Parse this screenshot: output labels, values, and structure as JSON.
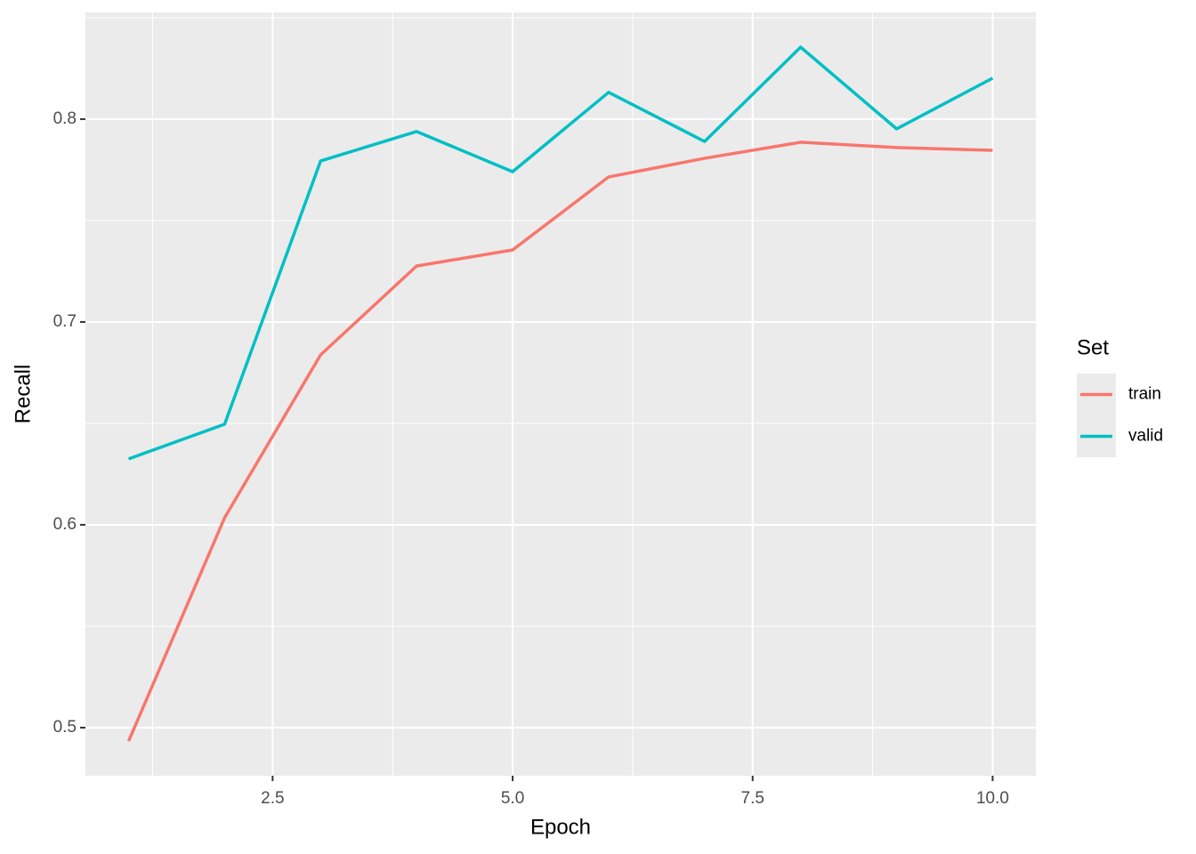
{
  "chart_data": {
    "type": "line",
    "x_label": "Epoch",
    "y_label": "Recall",
    "x": [
      1,
      2,
      3,
      4,
      5,
      6,
      7,
      8,
      9,
      10
    ],
    "series": [
      {
        "name": "train",
        "color": "#f8766d",
        "values": [
          0.4934,
          0.6035,
          0.6838,
          0.7276,
          0.7355,
          0.7715,
          0.7807,
          0.7886,
          0.786,
          0.7846
        ]
      },
      {
        "name": "valid",
        "color": "#00bfc4",
        "values": [
          0.6325,
          0.6496,
          0.7794,
          0.7939,
          0.7741,
          0.8132,
          0.789,
          0.8355,
          0.7952,
          0.8202
        ]
      }
    ],
    "xlim": [
      0.55,
      10.45
    ],
    "ylim": [
      0.4763,
      0.8526
    ],
    "xticks": [
      {
        "value": 2.5,
        "label": "2.5"
      },
      {
        "value": 5,
        "label": "5.0"
      },
      {
        "value": 7.5,
        "label": "7.5"
      },
      {
        "value": 10,
        "label": "10.0"
      }
    ],
    "yticks": [
      0.5,
      0.6,
      0.7,
      0.8
    ],
    "legend_title": "Set",
    "legend_position": "right",
    "grid": true
  }
}
